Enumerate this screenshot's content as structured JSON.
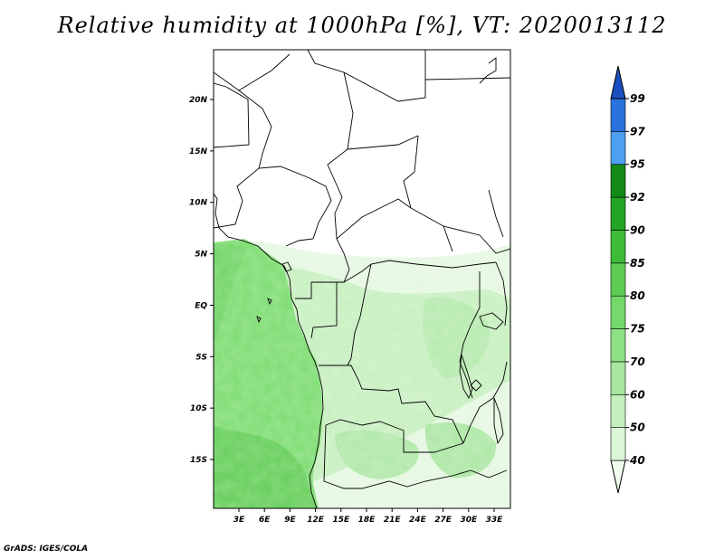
{
  "title": "Relative humidity at 1000hPa [%], VT: 2020013112",
  "credit": "GrADS: IGES/COLA",
  "map": {
    "lat_ticks": [
      "20N",
      "15N",
      "10N",
      "5N",
      "EQ",
      "5S",
      "10S",
      "15S"
    ],
    "lon_ticks": [
      "3E",
      "6E",
      "9E",
      "12E",
      "15E",
      "18E",
      "21E",
      "24E",
      "27E",
      "30E",
      "33E"
    ],
    "field": "relative humidity",
    "units": "%"
  },
  "colorbar": {
    "labels": [
      "40",
      "50",
      "60",
      "70",
      "75",
      "80",
      "85",
      "90",
      "92",
      "95",
      "97",
      "99"
    ],
    "colors": [
      "#f1fdef",
      "#dcf7d8",
      "#c4f0bd",
      "#a7e89e",
      "#8ee185",
      "#74d96a",
      "#5ccd52",
      "#3fbb3a",
      "#22a324",
      "#128a16",
      "#4d9ff0",
      "#2873dd",
      "#1a4fc1"
    ]
  }
}
